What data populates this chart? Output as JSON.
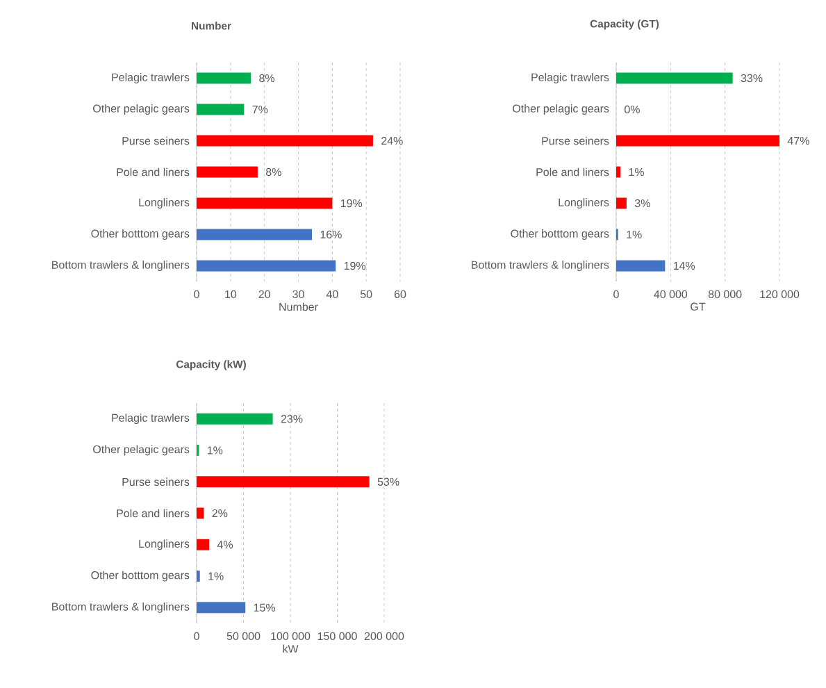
{
  "chart_data": [
    {
      "type": "bar",
      "orientation": "horizontal",
      "title": "Number",
      "xlabel": "Number",
      "categories": [
        "Pelagic trawlers",
        "Other pelagic gears",
        "Purse seiners",
        "Pole and liners",
        "Longliners",
        "Other botttom gears",
        "Bottom trawlers & longliners"
      ],
      "values": [
        16,
        14,
        52,
        18,
        40,
        34,
        41
      ],
      "colors": [
        "#00b050",
        "#00b050",
        "#ff0000",
        "#ff0000",
        "#ff0000",
        "#4472c4",
        "#4472c4"
      ],
      "annotations": [
        {
          "text": "8%",
          "x": 16,
          "y": "Pelagic trawlers"
        },
        {
          "text": "7%",
          "x": 14,
          "y": "Other pelagic gears"
        },
        {
          "text": "24%",
          "x": 52,
          "y": "Purse seiners"
        },
        {
          "text": "8%",
          "x": 18,
          "y": "Pole and liners"
        },
        {
          "text": "19%",
          "x": 40,
          "y": "Longliners"
        },
        {
          "text": "16%",
          "x": 34,
          "y": "Other botttom gears"
        },
        {
          "text": "19%",
          "x": 41,
          "y": "Bottom trawlers & longliners"
        }
      ],
      "xlim": [
        0,
        60
      ],
      "xticks": [
        0,
        10,
        20,
        30,
        40,
        50,
        60
      ],
      "grid": "x"
    },
    {
      "type": "bar",
      "orientation": "horizontal",
      "title": "Capacity (GT)",
      "xlabel": "GT",
      "categories": [
        "Pelagic trawlers",
        "Other pelagic gears",
        "Purse seiners",
        "Pole and liners",
        "Longliners",
        "Other botttom gears",
        "Bottom trawlers & longliners"
      ],
      "values": [
        85600,
        0,
        120000,
        3100,
        7600,
        1400,
        35900
      ],
      "colors": [
        "#00b050",
        "#00b050",
        "#ff0000",
        "#ff0000",
        "#ff0000",
        "#4472c4",
        "#4472c4"
      ],
      "annotations": [
        {
          "text": "33%",
          "x": 85600,
          "y": "Pelagic trawlers"
        },
        {
          "text": "0%",
          "x": 0,
          "y": "Other pelagic gears"
        },
        {
          "text": "47%",
          "x": 120000,
          "y": "Purse seiners"
        },
        {
          "text": "1%",
          "x": 3100,
          "y": "Pole and liners"
        },
        {
          "text": "3%",
          "x": 7600,
          "y": "Longliners"
        },
        {
          "text": "1%",
          "x": 1400,
          "y": "Other botttom gears"
        },
        {
          "text": "14%",
          "x": 35900,
          "y": "Bottom trawlers & longliners"
        }
      ],
      "xlim": [
        0,
        120000
      ],
      "xticks": [
        0,
        {
          "value": 40000,
          "label": "40 000"
        },
        {
          "value": 80000,
          "label": "80 000"
        },
        {
          "value": 120000,
          "label": "120 000"
        }
      ],
      "grid": "x"
    },
    {
      "type": "bar",
      "orientation": "horizontal",
      "title": "Capacity (kW)",
      "xlabel": "kW",
      "categories": [
        "Pelagic trawlers",
        "Other pelagic gears",
        "Purse seiners",
        "Pole and liners",
        "Longliners",
        "Other botttom gears",
        "Bottom trawlers & longliners"
      ],
      "values": [
        81200,
        2500,
        184200,
        7700,
        13400,
        3500,
        52000
      ],
      "colors": [
        "#00b050",
        "#00b050",
        "#ff0000",
        "#ff0000",
        "#ff0000",
        "#4472c4",
        "#4472c4"
      ],
      "annotations": [
        {
          "text": "23%",
          "x": 81200,
          "y": "Pelagic trawlers"
        },
        {
          "text": "1%",
          "x": 2500,
          "y": "Other pelagic gears"
        },
        {
          "text": "53%",
          "x": 184200,
          "y": "Purse seiners"
        },
        {
          "text": "2%",
          "x": 7700,
          "y": "Pole and liners"
        },
        {
          "text": "4%",
          "x": 13400,
          "y": "Longliners"
        },
        {
          "text": "1%",
          "x": 3500,
          "y": "Other botttom gears"
        },
        {
          "text": "15%",
          "x": 52000,
          "y": "Bottom trawlers & longliners"
        }
      ],
      "xlim": [
        0,
        200000
      ],
      "xticks": [
        0,
        {
          "value": 50000,
          "label": "50 000"
        },
        {
          "value": 100000,
          "label": "100 000"
        },
        {
          "value": 150000,
          "label": "150 000"
        },
        {
          "value": 200000,
          "label": "200 000"
        }
      ],
      "grid": "x"
    }
  ]
}
